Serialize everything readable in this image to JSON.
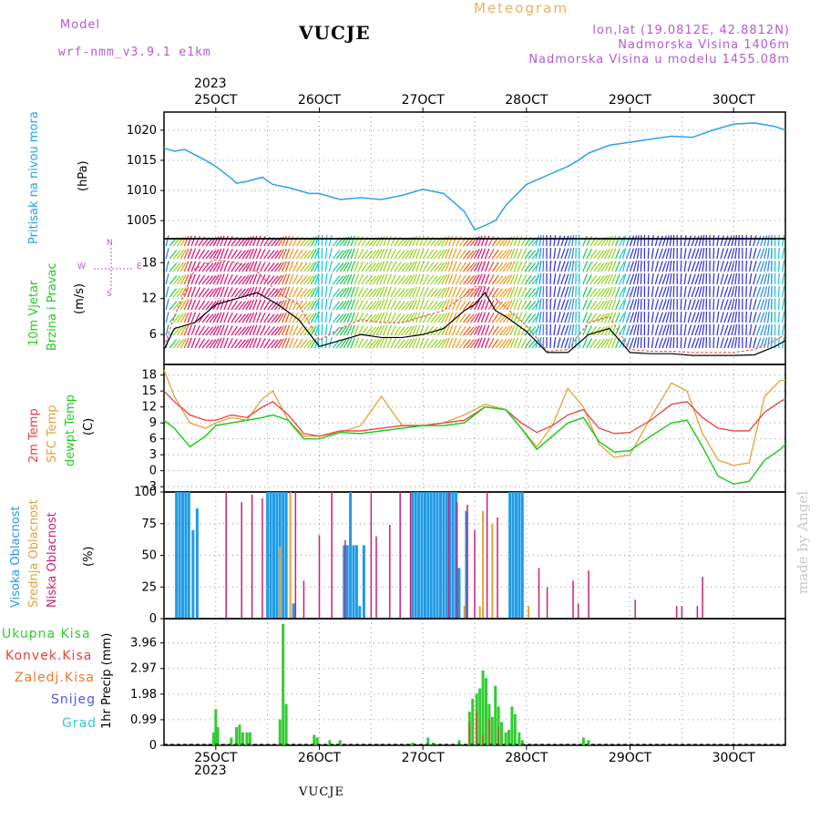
{
  "header": {
    "model_label": "Model",
    "model_name": "wrf-nmm_v3.9.1 e1km",
    "station": "VUCJE",
    "meteogram": "Meteogram",
    "lonlat": "lon,lat (19.0812E, 42.8812N)",
    "elevation": "Nadmorska Visina 1406m",
    "model_elevation": "Nadmorska Visina u modelu 1455.08m"
  },
  "colors": {
    "pressure": "#29a3e6",
    "temp2m": "#e8403e",
    "sfc": "#e0a23a",
    "dew": "#22cc22",
    "high_cloud": "#1e9be6",
    "mid_cloud": "#e6a23a",
    "low_cloud": "#cc1f7a",
    "total_precip": "#33cc33",
    "conv": "#e8403e",
    "frozen": "#e87a2e",
    "snow": "#5555dd",
    "grad": "#33cccc"
  },
  "axis_labels": {
    "pressure": "Pritisak na nivou mora",
    "pressure_unit": "(hPa)",
    "wind_a": "10m Vjetar",
    "wind_b": "Brzina i Pravac",
    "wind_unit": "(m/s)",
    "temp_a": "2m Temp",
    "temp_b": "SFC Temp",
    "temp_c": "dewpt Temp",
    "temp_unit": "(C)",
    "cloud_a": "Visoka Oblacnost",
    "cloud_b": "Srednja Oblacnost",
    "cloud_c": "Niska Oblacnost",
    "cloud_unit": "(%)",
    "precip_unit": "1hr Precip (mm)",
    "compass_w": "W",
    "compass_e": "E",
    "compass_s": "S",
    "compass_n": "N"
  },
  "precip_legend": [
    "Ukupna Kisa",
    "Konvek.Kisa",
    "Zaledj.Kisa",
    "Snijeg",
    "Grad"
  ],
  "footer": {
    "year": "2023",
    "station": "VUCJE",
    "madeby": "made by Angel"
  },
  "chart_data": {
    "type": "meteogram",
    "x_ticks": [
      "25OCT",
      "26OCT",
      "27OCT",
      "28OCT",
      "29OCT",
      "30OCT"
    ],
    "x_tick_days": [
      25,
      26,
      27,
      28,
      29,
      30
    ],
    "x_range_days": [
      24.5,
      30.5
    ],
    "pressure": {
      "ylim": [
        1002,
        1023
      ],
      "yticks": [
        1005,
        1010,
        1015,
        1020
      ],
      "x": [
        24.5,
        24.6,
        24.7,
        24.9,
        25.0,
        25.15,
        25.2,
        25.3,
        25.45,
        25.55,
        25.7,
        25.9,
        26.0,
        26.2,
        26.4,
        26.6,
        26.8,
        27.0,
        27.2,
        27.4,
        27.5,
        27.6,
        27.7,
        27.8,
        28.0,
        28.2,
        28.4,
        28.5,
        28.6,
        28.8,
        29.0,
        29.2,
        29.4,
        29.6,
        29.8,
        30.0,
        30.2,
        30.4,
        30.5
      ],
      "values": [
        1017,
        1016.5,
        1016.8,
        1015,
        1014,
        1012,
        1011.2,
        1011.5,
        1012.2,
        1011,
        1010.5,
        1009.5,
        1009.5,
        1008.5,
        1008.8,
        1008.5,
        1009.2,
        1010.2,
        1009.5,
        1006.5,
        1003.5,
        1004.2,
        1005,
        1007.5,
        1011,
        1012.5,
        1014,
        1015,
        1016.2,
        1017.5,
        1018,
        1018.5,
        1019,
        1018.8,
        1020,
        1021,
        1021.2,
        1020.6,
        1020
      ]
    },
    "wind": {
      "ylim": [
        1,
        22
      ],
      "yticks": [
        6,
        12,
        18
      ],
      "x": [
        24.5,
        24.6,
        24.8,
        25.0,
        25.2,
        25.4,
        25.6,
        25.8,
        26.0,
        26.2,
        26.4,
        26.6,
        26.8,
        27.0,
        27.2,
        27.4,
        27.5,
        27.6,
        27.7,
        27.8,
        28.0,
        28.2,
        28.4,
        28.6,
        28.8,
        29.0,
        29.2,
        29.4,
        29.6,
        29.8,
        30.0,
        30.2,
        30.4,
        30.5
      ],
      "speed": [
        3.5,
        7,
        8,
        11,
        12,
        13,
        11,
        8.5,
        4,
        5,
        6,
        5.5,
        5.5,
        6,
        7,
        10,
        11,
        13,
        10,
        9,
        6.5,
        3,
        3,
        6,
        7,
        3,
        2.8,
        2.8,
        2.5,
        2.5,
        2.5,
        2.6,
        4,
        5
      ],
      "gust": [
        4,
        9,
        17,
        18.5,
        18,
        16.5,
        13,
        11,
        5,
        7,
        8.5,
        8,
        8,
        9,
        10,
        12.5,
        14,
        14,
        12,
        10.5,
        7.5,
        3.2,
        3.5,
        8,
        9,
        3.5,
        3.2,
        3.2,
        3,
        3,
        3,
        3.5,
        5,
        6
      ]
    },
    "temperature": {
      "ylim": [
        -4,
        20
      ],
      "yticks": [
        -3,
        0,
        3,
        6,
        9,
        12,
        15,
        18
      ],
      "x": [
        24.5,
        24.6,
        24.75,
        24.9,
        25.0,
        25.15,
        25.3,
        25.45,
        25.55,
        25.7,
        25.85,
        26.0,
        26.2,
        26.4,
        26.6,
        26.8,
        27.0,
        27.2,
        27.4,
        27.6,
        27.8,
        27.95,
        28.1,
        28.25,
        28.4,
        28.55,
        28.7,
        28.85,
        29.0,
        29.2,
        29.4,
        29.55,
        29.7,
        29.85,
        30.0,
        30.15,
        30.3,
        30.45,
        30.5
      ],
      "temp2m": [
        15,
        13,
        10.5,
        9.5,
        9.5,
        10.5,
        10,
        12,
        13,
        10.5,
        7,
        6.5,
        7.5,
        7.5,
        8,
        8.5,
        8.5,
        9,
        9.5,
        12,
        11.5,
        9,
        7.2,
        8.5,
        10.5,
        11.5,
        8,
        7,
        7.2,
        9.5,
        12.5,
        13,
        10,
        8,
        7.5,
        7.5,
        11,
        13,
        13.5
      ],
      "sfc": [
        19,
        14,
        9,
        8,
        9,
        10,
        9.5,
        13.5,
        15,
        9.5,
        6.5,
        6.5,
        7.2,
        8.5,
        14,
        8.5,
        8.5,
        9,
        10.5,
        12.5,
        11.5,
        8,
        4.5,
        8.5,
        15.5,
        12,
        5,
        2.5,
        3,
        10,
        16.5,
        15,
        7,
        2,
        1,
        1.5,
        14,
        17,
        17
      ],
      "dew": [
        9.5,
        8,
        4.5,
        6.5,
        8.5,
        9,
        9.5,
        10,
        10.5,
        9.5,
        6,
        6,
        7.2,
        7,
        7.5,
        8,
        8.5,
        8.5,
        9,
        12,
        11.5,
        8,
        4,
        6.5,
        9,
        10,
        5.5,
        3.5,
        3.8,
        6.5,
        9,
        9.5,
        4.5,
        -1,
        -2.5,
        -2,
        2,
        4,
        5
      ]
    },
    "clouds": {
      "ylim": [
        0,
        100
      ],
      "yticks": [
        0,
        25,
        50,
        75,
        100
      ],
      "high": [
        [
          24.62,
          100
        ],
        [
          24.65,
          100
        ],
        [
          24.68,
          100
        ],
        [
          24.71,
          100
        ],
        [
          24.74,
          100
        ],
        [
          24.78,
          70
        ],
        [
          24.82,
          87
        ],
        [
          25.5,
          100
        ],
        [
          25.53,
          100
        ],
        [
          25.56,
          100
        ],
        [
          25.59,
          100
        ],
        [
          25.62,
          100
        ],
        [
          25.65,
          100
        ],
        [
          25.68,
          100
        ],
        [
          25.75,
          12
        ],
        [
          26.24,
          58
        ],
        [
          26.27,
          58
        ],
        [
          26.3,
          100
        ],
        [
          26.33,
          58
        ],
        [
          26.36,
          58
        ],
        [
          26.39,
          10
        ],
        [
          26.43,
          58
        ],
        [
          26.9,
          100
        ],
        [
          26.93,
          100
        ],
        [
          26.96,
          100
        ],
        [
          26.99,
          100
        ],
        [
          27.02,
          100
        ],
        [
          27.05,
          100
        ],
        [
          27.08,
          100
        ],
        [
          27.11,
          100
        ],
        [
          27.14,
          100
        ],
        [
          27.17,
          100
        ],
        [
          27.2,
          100
        ],
        [
          27.23,
          100
        ],
        [
          27.26,
          100
        ],
        [
          27.29,
          100
        ],
        [
          27.32,
          100
        ],
        [
          27.35,
          40
        ],
        [
          27.42,
          85
        ],
        [
          27.84,
          100
        ],
        [
          27.87,
          100
        ],
        [
          27.9,
          100
        ],
        [
          27.93,
          100
        ],
        [
          27.96,
          100
        ]
      ],
      "mid": [
        [
          25.72,
          100
        ],
        [
          25.62,
          57
        ],
        [
          27.4,
          10
        ],
        [
          27.55,
          10
        ],
        [
          27.58,
          85
        ],
        [
          27.67,
          75
        ],
        [
          28.02,
          10
        ]
      ],
      "low": [
        [
          25.1,
          100
        ],
        [
          25.25,
          92
        ],
        [
          25.35,
          98
        ],
        [
          25.45,
          95
        ],
        [
          25.77,
          100
        ],
        [
          25.85,
          30
        ],
        [
          26.0,
          66
        ],
        [
          26.12,
          100
        ],
        [
          26.25,
          62
        ],
        [
          26.5,
          100
        ],
        [
          26.55,
          65
        ],
        [
          26.68,
          74
        ],
        [
          26.78,
          100
        ],
        [
          26.88,
          100
        ],
        [
          27.25,
          100
        ],
        [
          27.33,
          92
        ],
        [
          27.43,
          90
        ],
        [
          27.5,
          70
        ],
        [
          27.62,
          100
        ],
        [
          27.72,
          80
        ],
        [
          28.12,
          40
        ],
        [
          28.2,
          25
        ],
        [
          28.45,
          30
        ],
        [
          28.5,
          12
        ],
        [
          28.6,
          38
        ],
        [
          29.05,
          15
        ],
        [
          29.45,
          10
        ],
        [
          29.5,
          10
        ],
        [
          29.65,
          10
        ],
        [
          29.7,
          33
        ]
      ]
    },
    "precip": {
      "ylim": [
        0,
        4.9
      ],
      "yticks": [
        0,
        0.99,
        1.98,
        2.97,
        3.96
      ],
      "total": [
        [
          24.98,
          0.5
        ],
        [
          25.0,
          1.4
        ],
        [
          25.02,
          0.7
        ],
        [
          25.15,
          0.3
        ],
        [
          25.2,
          0.7
        ],
        [
          25.23,
          0.8
        ],
        [
          25.26,
          0.5
        ],
        [
          25.3,
          0.5
        ],
        [
          25.33,
          0.5
        ],
        [
          25.62,
          1.0
        ],
        [
          25.65,
          4.7
        ],
        [
          25.68,
          1.6
        ],
        [
          25.95,
          0.4
        ],
        [
          25.98,
          0.3
        ],
        [
          26.1,
          0.2
        ],
        [
          26.2,
          0.2
        ],
        [
          26.9,
          0.1
        ],
        [
          27.05,
          0.3
        ],
        [
          27.1,
          0.1
        ],
        [
          27.35,
          0.2
        ],
        [
          27.45,
          1.3
        ],
        [
          27.48,
          1.8
        ],
        [
          27.52,
          2.0
        ],
        [
          27.55,
          2.2
        ],
        [
          27.58,
          2.9
        ],
        [
          27.61,
          2.6
        ],
        [
          27.64,
          1.6
        ],
        [
          27.67,
          1.1
        ],
        [
          27.7,
          2.3
        ],
        [
          27.73,
          1.5
        ],
        [
          27.76,
          0.9
        ],
        [
          27.8,
          0.5
        ],
        [
          27.83,
          0.6
        ],
        [
          27.86,
          1.5
        ],
        [
          27.89,
          1.2
        ],
        [
          27.93,
          0.5
        ],
        [
          27.96,
          0.2
        ],
        [
          28.55,
          0.3
        ],
        [
          28.6,
          0.2
        ]
      ],
      "conv": [
        [
          27.45,
          0.9
        ],
        [
          27.52,
          1.3
        ],
        [
          27.58,
          0.4
        ],
        [
          27.64,
          1.0
        ],
        [
          27.73,
          0.7
        ]
      ]
    }
  }
}
